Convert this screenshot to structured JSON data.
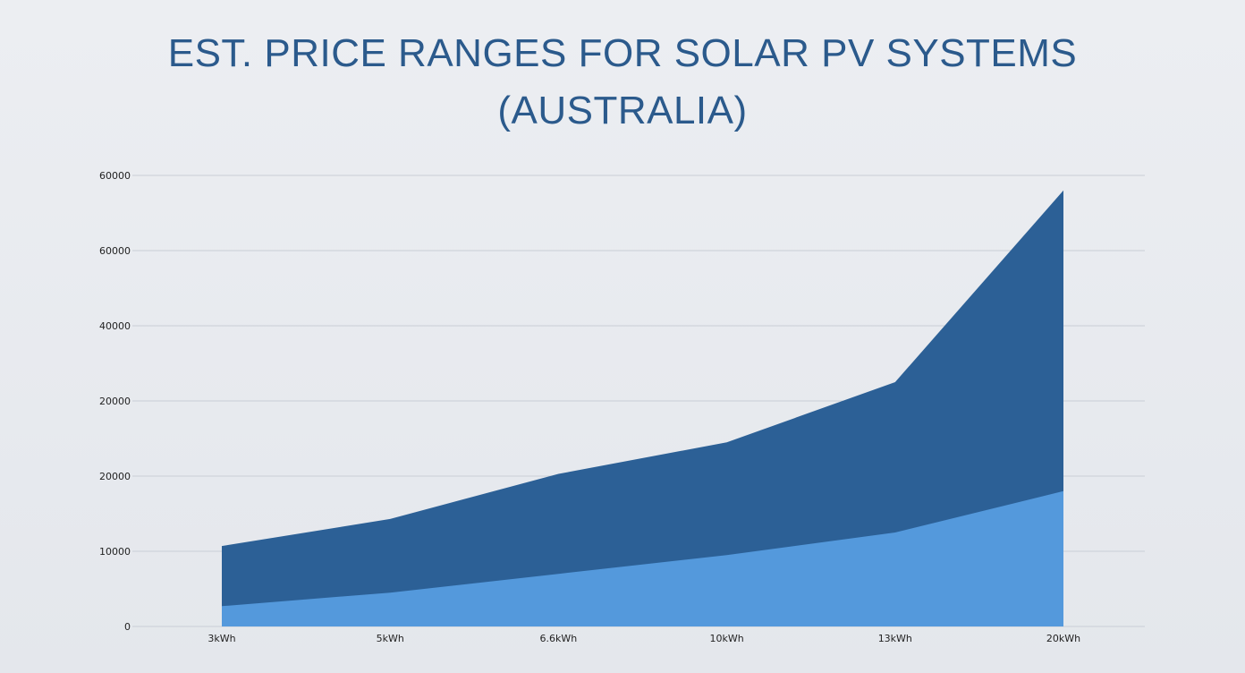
{
  "chart_data": {
    "type": "area",
    "title_line1": "EST. PRICE RANGES FOR SOLAR PV SYSTEMS",
    "title_line2": "(AUSTRALIA)",
    "categories": [
      "3kWh",
      "5kWh",
      "6.6kWh",
      "10kWh",
      "13kWh",
      "20kWh"
    ],
    "y_tick_labels": [
      "0",
      "10000",
      "20000",
      "20000",
      "40000",
      "60000",
      "60000"
    ],
    "ylim": [
      0,
      60000
    ],
    "grid": true,
    "legend": "none",
    "series": [
      {
        "values": [
          2700,
          4500,
          7000,
          9500,
          12500,
          18000
        ],
        "color": "#5499dc"
      },
      {
        "values": [
          10700,
          14300,
          20300,
          24500,
          32500,
          58000
        ],
        "color": "#2c6096"
      }
    ]
  }
}
